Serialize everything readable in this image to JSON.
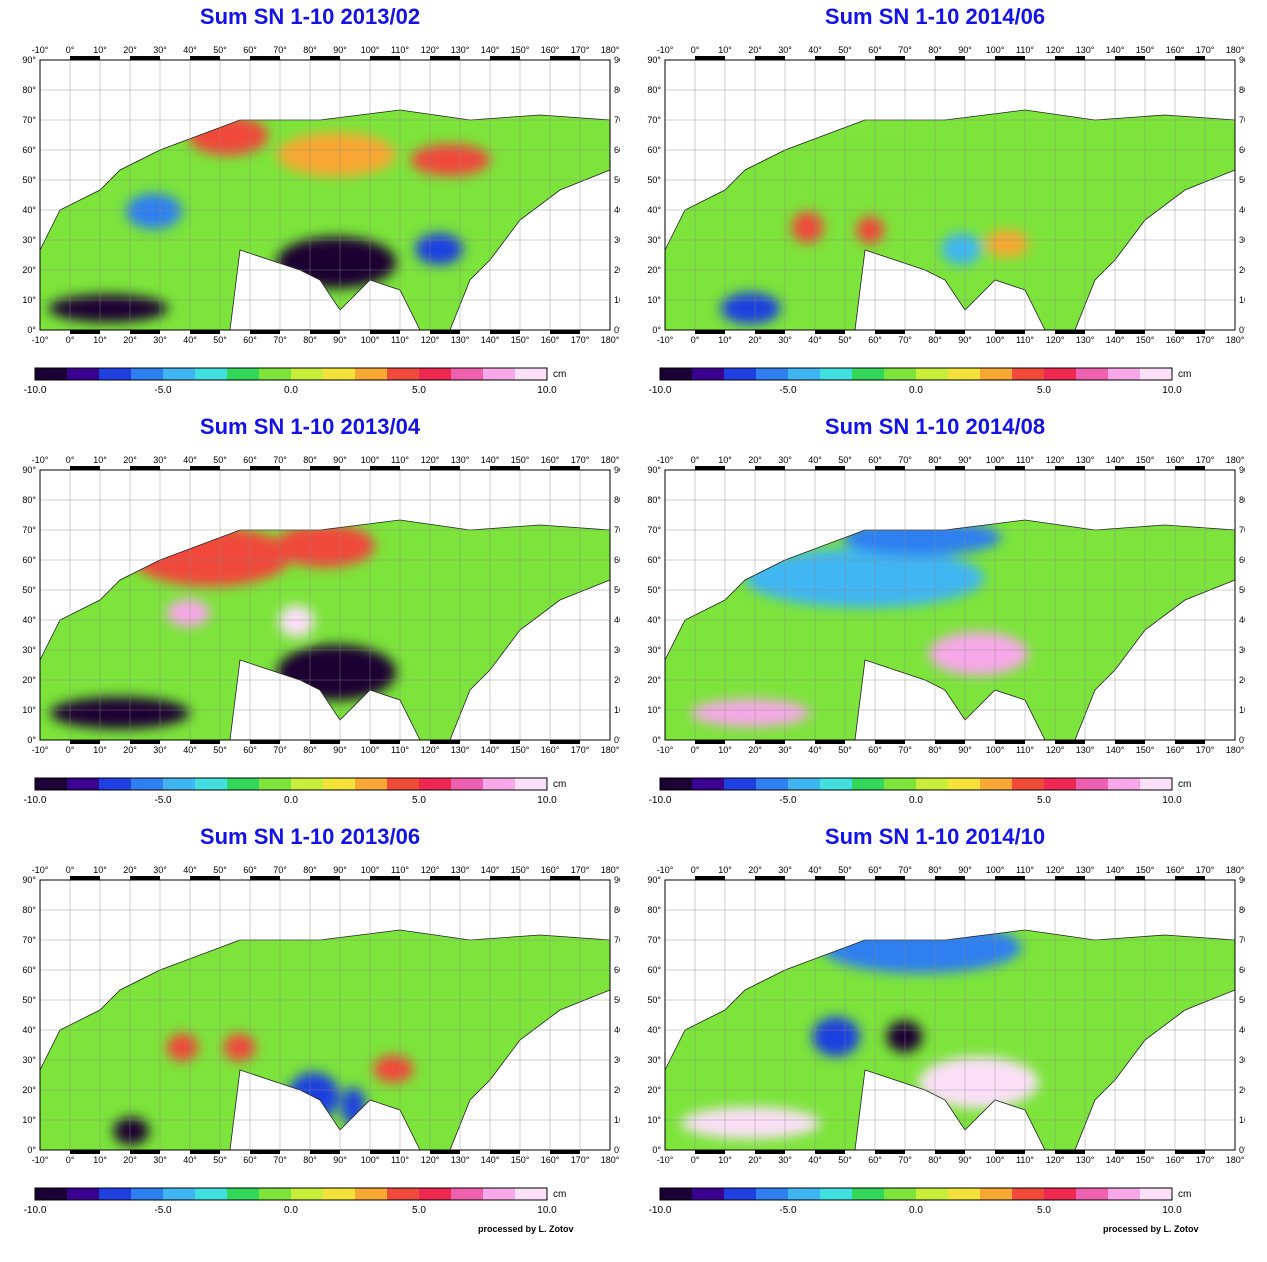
{
  "panels": [
    {
      "title": "Sum SN 1-10  2013/02",
      "credit": ""
    },
    {
      "title": "Sum SN 1-10  2014/06",
      "credit": ""
    },
    {
      "title": "Sum SN 1-10  2013/04",
      "credit": ""
    },
    {
      "title": "Sum SN 1-10  2014/08",
      "credit": ""
    },
    {
      "title": "Sum SN 1-10  2013/06",
      "credit": "processed by L. Zotov"
    },
    {
      "title": "Sum SN 1-10  2014/10",
      "credit": "processed by L. Zotov"
    }
  ],
  "lon_ticks": [
    "-10°",
    "0°",
    "10°",
    "20°",
    "30°",
    "40°",
    "50°",
    "60°",
    "70°",
    "80°",
    "90°",
    "100°",
    "110°",
    "120°",
    "130°",
    "140°",
    "150°",
    "160°",
    "170°",
    "180°"
  ],
  "lat_ticks": [
    "0°",
    "10°",
    "20°",
    "30°",
    "40°",
    "50°",
    "60°",
    "70°",
    "80°",
    "90°"
  ],
  "colorbar": {
    "unit": "cm",
    "tick_labels": [
      "-10.0",
      "-5.0",
      "0.0",
      "5.0",
      "10.0"
    ],
    "colors": [
      "#1a0033",
      "#3a0090",
      "#1f3fe0",
      "#2f7ff0",
      "#3fb6f2",
      "#40e0e0",
      "#33d75a",
      "#7ce43a",
      "#c9ee3a",
      "#f2e23a",
      "#f7a733",
      "#f04a3a",
      "#ee2850",
      "#f060b0",
      "#f7a8e8",
      "#fbe0f8"
    ]
  }
}
